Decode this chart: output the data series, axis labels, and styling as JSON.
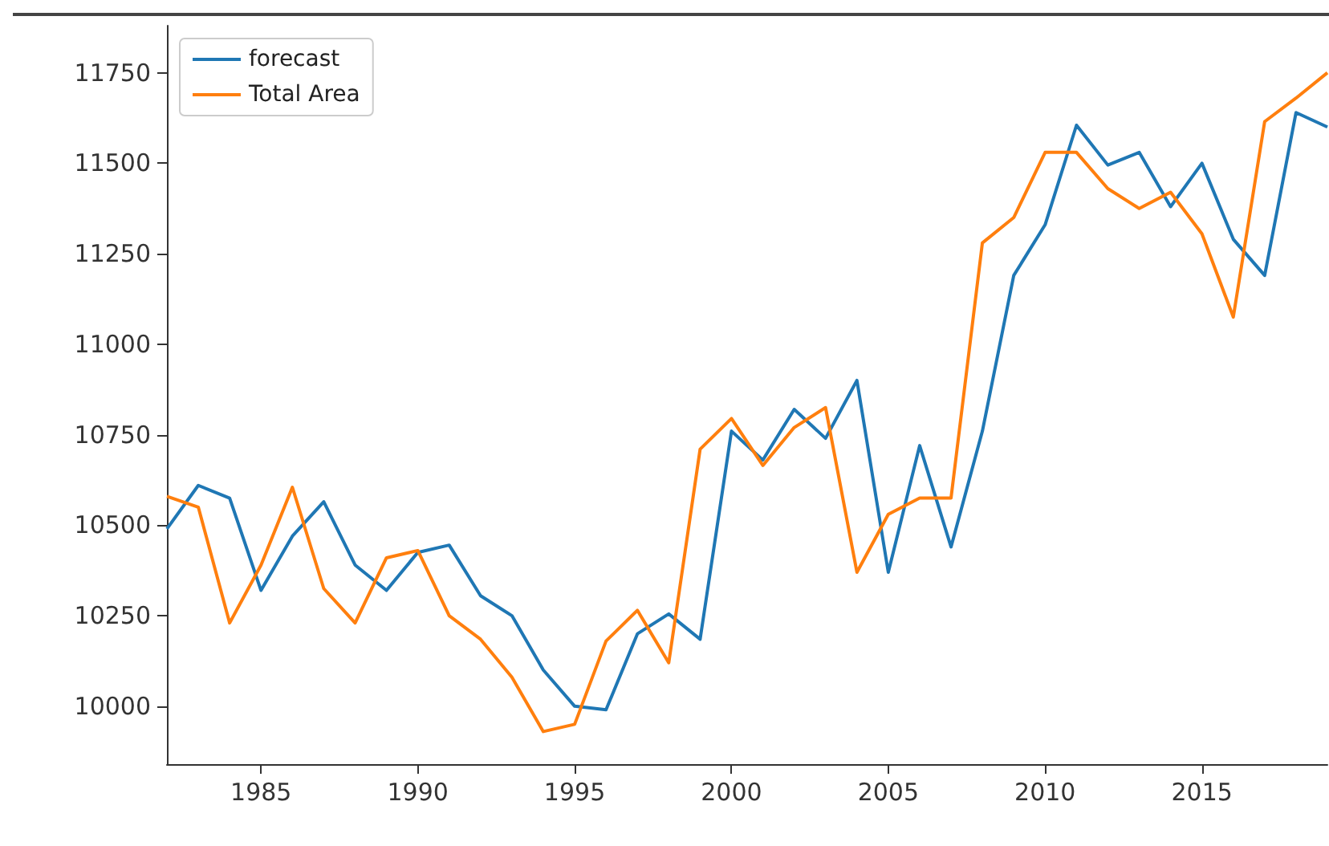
{
  "chart_data": {
    "type": "line",
    "x": [
      1982,
      1983,
      1984,
      1985,
      1986,
      1987,
      1988,
      1989,
      1990,
      1991,
      1992,
      1993,
      1994,
      1995,
      1996,
      1997,
      1998,
      1999,
      2000,
      2001,
      2002,
      2003,
      2004,
      2005,
      2006,
      2007,
      2008,
      2009,
      2010,
      2011,
      2012,
      2013,
      2014,
      2015,
      2016,
      2017,
      2018,
      2019
    ],
    "series": [
      {
        "name": "forecast",
        "color": "#1f77b4",
        "values": [
          10490,
          10610,
          10575,
          10320,
          10470,
          10565,
          10390,
          10320,
          10425,
          10445,
          10305,
          10250,
          10100,
          10000,
          9990,
          10200,
          10255,
          10185,
          10760,
          10680,
          10820,
          10740,
          10900,
          10370,
          10720,
          10440,
          10760,
          11190,
          11330,
          11605,
          11495,
          11530,
          11380,
          11500,
          11290,
          11190,
          11640,
          11600
        ]
      },
      {
        "name": "Total Area",
        "color": "#ff7f0e",
        "values": [
          10580,
          10550,
          10230,
          10390,
          10605,
          10325,
          10230,
          10410,
          10430,
          10250,
          10185,
          10080,
          9930,
          9950,
          10180,
          10265,
          10120,
          10710,
          10795,
          10665,
          10770,
          10825,
          10370,
          10530,
          10575,
          10575,
          11280,
          11350,
          11530,
          11530,
          11430,
          11375,
          11420,
          11305,
          11075,
          11615,
          11680,
          11750
        ]
      }
    ],
    "xlim": [
      1982,
      2019
    ],
    "xticks": [
      1985,
      1990,
      1995,
      2000,
      2005,
      2010,
      2015
    ],
    "ylim": [
      9840,
      11880
    ],
    "yticks": [
      10000,
      10250,
      10500,
      10750,
      11000,
      11250,
      11500,
      11750
    ],
    "legend": "top left",
    "grid": false,
    "marker": "none",
    "line_style": "solid"
  }
}
